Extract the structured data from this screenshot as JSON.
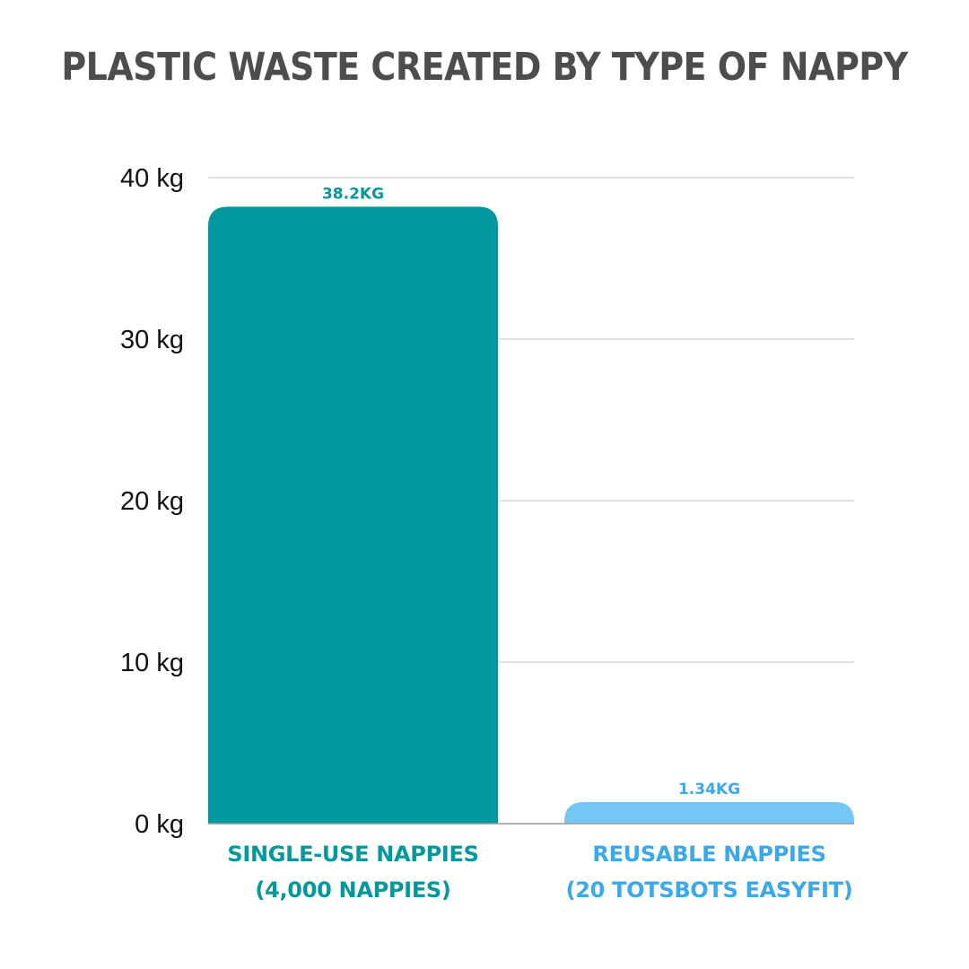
{
  "chart_data": {
    "type": "bar",
    "title": "PLASTIC WASTE CREATED BY TYPE OF NAPPY",
    "xlabel": "",
    "ylabel": "",
    "ylim": [
      0,
      40
    ],
    "yticks": [
      0,
      10,
      20,
      30,
      40
    ],
    "ytick_unit": "kg",
    "ytick_labels": [
      "0 kg",
      "10 kg",
      "20 kg",
      "30 kg",
      "40 kg"
    ],
    "grid": true,
    "categories": [
      [
        "SINGLE-USE NAPPIES",
        "(4,000 NAPPIES)"
      ],
      [
        "REUSABLE NAPPIES",
        "(20 TOTSBOTS EASYFIT)"
      ]
    ],
    "values": [
      38.2,
      1.34
    ],
    "data_labels": [
      "38.2KG",
      "1.34KG"
    ],
    "colors": [
      "#03989e",
      "#74c6f4"
    ],
    "label_colors": [
      "#03989e",
      "#3aa8ea"
    ]
  }
}
